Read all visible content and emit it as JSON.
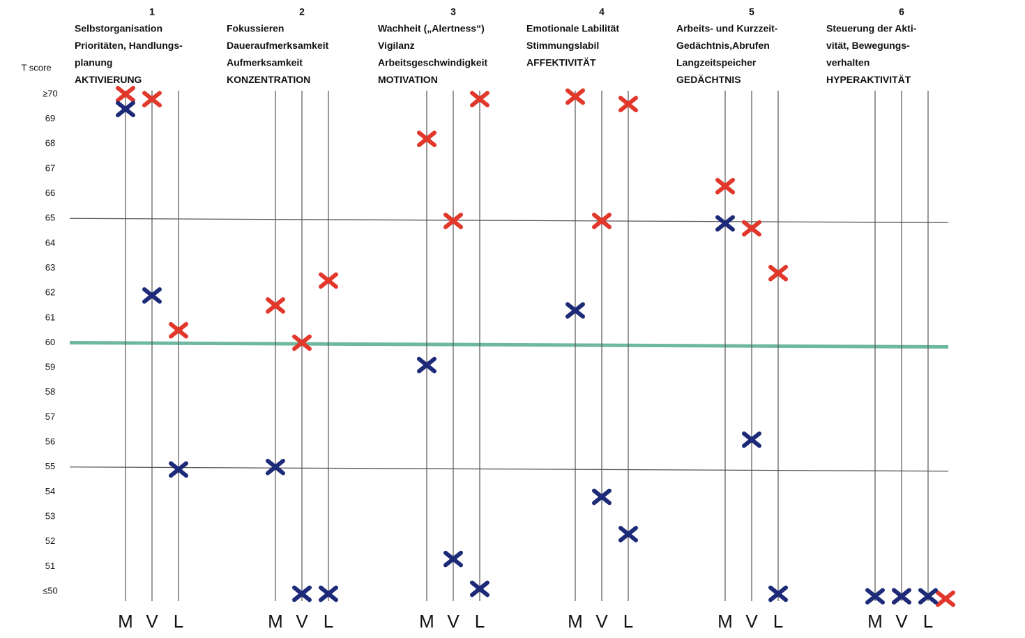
{
  "chart_data": {
    "type": "scatter",
    "y_label": "T score",
    "groups": [
      {
        "number": "1",
        "lines": [
          "Selbstorganisation",
          "Prioritäten, Handlungs-",
          "planung",
          "AKTIVIERUNG"
        ]
      },
      {
        "number": "2",
        "lines": [
          "Fokussieren",
          "Daueraufmerksamkeit",
          "Aufmerksamkeit",
          "KONZENTRATION"
        ]
      },
      {
        "number": "3",
        "lines": [
          "Wachheit („Alertness“)",
          "Vigilanz",
          "Arbeitsgeschwindigkeit",
          "MOTIVATION"
        ]
      },
      {
        "number": "4",
        "lines": [
          "Emotionale Labilität",
          "Stimmungslabil",
          "AFFEKTIVITÄT"
        ]
      },
      {
        "number": "5",
        "lines": [
          "Arbeits- und Kurzzeit-",
          "Gedächtnis,Abrufen",
          "Langzeitspeicher",
          "GEDÄCHTNIS"
        ]
      },
      {
        "number": "6",
        "lines": [
          "Steuerung der Akti-",
          "vität, Bewegungs-",
          "verhalten",
          "HYPERAKTIVITÄT"
        ]
      }
    ],
    "categories": [
      "M",
      "V",
      "L",
      "M",
      "V",
      "L",
      "M",
      "V",
      "L",
      "M",
      "V",
      "L",
      "M",
      "V",
      "L",
      "M",
      "V",
      "L"
    ],
    "series": [
      {
        "color": "#e2372b",
        "values": [
          70,
          69.8,
          60.5,
          61.5,
          60,
          62.5,
          68.2,
          64.9,
          69.8,
          69.9,
          64.9,
          69.6,
          66.3,
          64.6,
          62.8,
          null,
          49.8,
          49.7
        ]
      },
      {
        "color": "#1c2a78",
        "values": [
          69.4,
          61.9,
          54.9,
          55,
          49.9,
          49.9,
          59.1,
          51.3,
          50.1,
          61.3,
          53.8,
          52.3,
          64.8,
          56.1,
          49.9,
          49.8,
          49.8,
          49.8
        ]
      }
    ],
    "reference_lines": [
      55,
      60,
      65
    ],
    "ylim": [
      49.5,
      70.5
    ],
    "yticks": [
      {
        "value": 50,
        "label": "≤50"
      },
      51,
      52,
      53,
      54,
      55,
      56,
      57,
      58,
      59,
      60,
      61,
      62,
      63,
      64,
      65,
      66,
      67,
      68,
      69,
      {
        "value": 70,
        "label": "≥70"
      }
    ]
  }
}
